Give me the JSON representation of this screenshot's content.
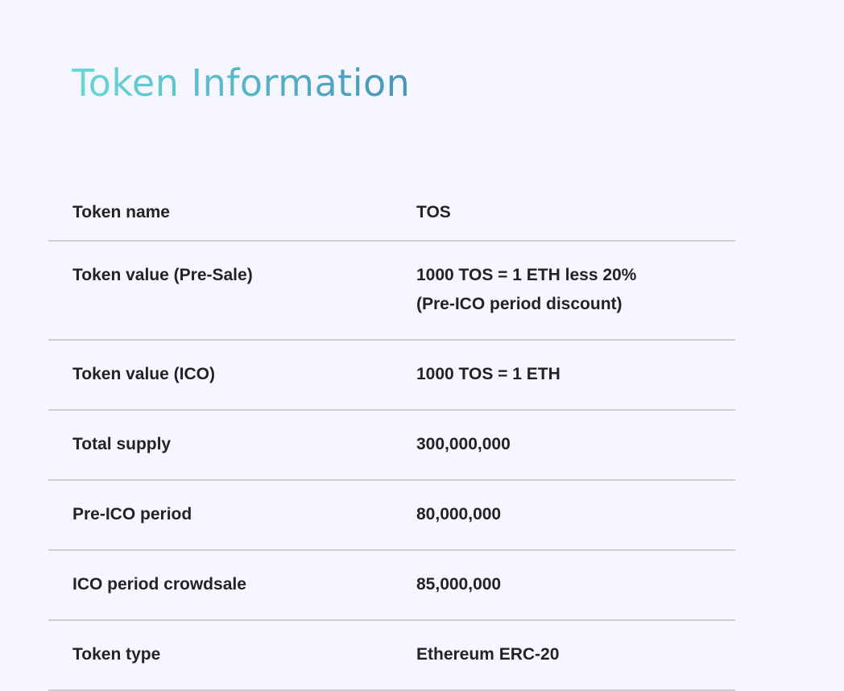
{
  "title": "Token Information",
  "colors": {
    "title_gradient_start": "#6ad7d8",
    "title_gradient_end": "#4894b8",
    "background": "#f5f6fe",
    "text": "#222328",
    "divider": "#cfcfd3"
  },
  "rows": [
    {
      "label": "Token name",
      "value": [
        "TOS"
      ]
    },
    {
      "label": "Token value (Pre-Sale)",
      "value": [
        "1000 TOS = 1 ETH less 20%",
        "(Pre-ICO period discount)"
      ]
    },
    {
      "label": "Token value (ICO)",
      "value": [
        "1000 TOS = 1 ETH"
      ]
    },
    {
      "label": "Total supply",
      "value": [
        "300,000,000"
      ]
    },
    {
      "label": "Pre-ICO period",
      "value": [
        "80,000,000"
      ]
    },
    {
      "label": "ICO period crowdsale",
      "value": [
        "85,000,000"
      ]
    },
    {
      "label": "Token type",
      "value": [
        "Ethereum ERC-20"
      ]
    }
  ]
}
